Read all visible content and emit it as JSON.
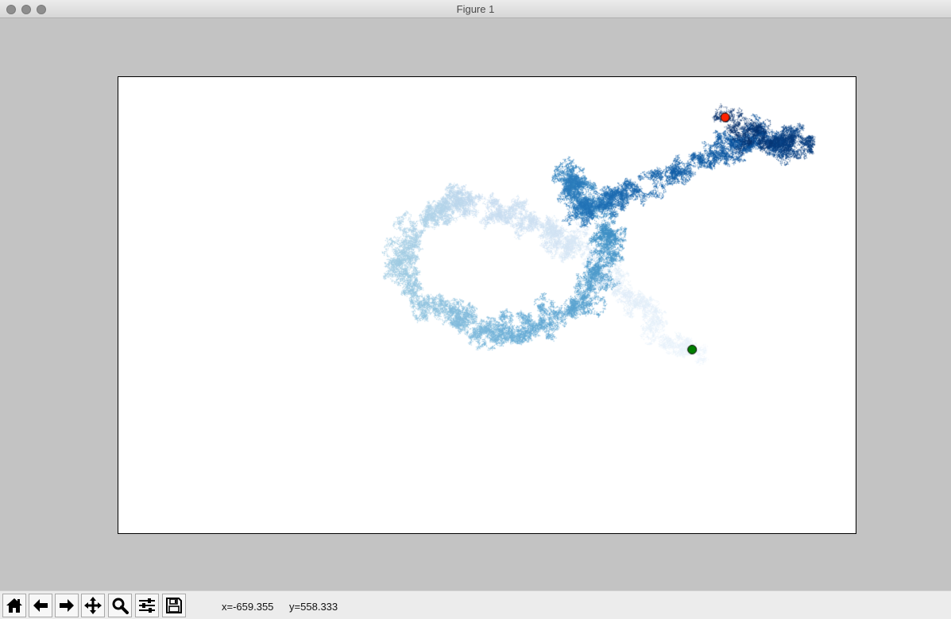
{
  "window": {
    "title": "Figure 1"
  },
  "toolbar": {
    "buttons": [
      {
        "icon": "home-icon",
        "tooltip": ""
      },
      {
        "icon": "back-arrow-icon",
        "tooltip": ""
      },
      {
        "icon": "forward-arrow-icon",
        "tooltip": ""
      },
      {
        "icon": "pan-icon",
        "tooltip": ""
      },
      {
        "icon": "zoom-icon",
        "tooltip": ""
      },
      {
        "icon": "subplots-config-icon",
        "tooltip": ""
      },
      {
        "icon": "save-icon",
        "tooltip": ""
      }
    ],
    "cursor_x": "x=-659.355",
    "cursor_y": "y=558.333"
  },
  "chart_data": {
    "type": "scatter",
    "title": "",
    "xlabel": "",
    "ylabel": "",
    "axis_visible": false,
    "grid": false,
    "colormap": "Blues",
    "point_count": 50000,
    "start_marker": {
      "label": "",
      "color": "#008000"
    },
    "end_marker": {
      "label": "",
      "color": "#ff2200"
    }
  }
}
